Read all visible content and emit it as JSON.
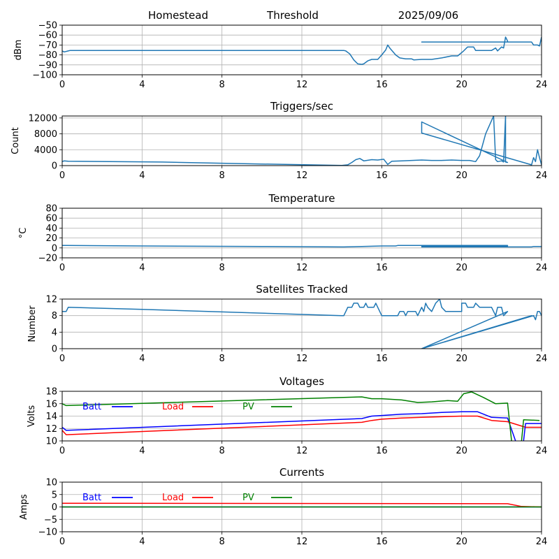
{
  "header": {
    "site": "Homestead",
    "mode": "Threshold",
    "date": "2025/09/06"
  },
  "colors": {
    "line": "#1f77b4",
    "grid": "#b0b0b0",
    "batt": "#0000ff",
    "load": "#ff0000",
    "pv": "#008000"
  },
  "chart_data": [
    {
      "type": "line",
      "title": "",
      "xlabel": "",
      "ylabel": "dBm",
      "grid": true,
      "xlim": [
        0,
        24
      ],
      "xticks": [
        0,
        4,
        8,
        12,
        16,
        20,
        24
      ],
      "ylim": [
        -100,
        -50
      ],
      "yticks": [
        -100,
        -90,
        -80,
        -70,
        -60,
        -50
      ],
      "series": [
        {
          "color_key": "line",
          "points": [
            [
              0,
              -76
            ],
            [
              0.1,
              -77
            ],
            [
              0.3,
              -76
            ],
            [
              0.4,
              -75.5
            ],
            [
              14.1,
              -75.5
            ],
            [
              14.2,
              -76
            ],
            [
              14.4,
              -79
            ],
            [
              14.6,
              -85
            ],
            [
              14.8,
              -89
            ],
            [
              15.0,
              -89.5
            ],
            [
              15.1,
              -89
            ],
            [
              15.3,
              -86
            ],
            [
              15.5,
              -84.5
            ],
            [
              15.8,
              -84.5
            ],
            [
              16.0,
              -80
            ],
            [
              16.2,
              -75
            ],
            [
              16.3,
              -70
            ],
            [
              16.4,
              -73
            ],
            [
              16.7,
              -80
            ],
            [
              16.9,
              -83
            ],
            [
              17.2,
              -84
            ],
            [
              17.5,
              -84
            ],
            [
              17.6,
              -85
            ],
            [
              18.0,
              -84.5
            ],
            [
              18.5,
              -84.5
            ],
            [
              19.0,
              -83
            ],
            [
              19.5,
              -81
            ],
            [
              19.8,
              -81
            ],
            [
              20.1,
              -76
            ],
            [
              20.3,
              -72
            ],
            [
              20.6,
              -72
            ],
            [
              20.7,
              -75.5
            ],
            [
              21.5,
              -75.5
            ],
            [
              21.7,
              -73
            ],
            [
              21.8,
              -76
            ],
            [
              22.0,
              -72
            ],
            [
              22.1,
              -73
            ],
            [
              22.2,
              -62
            ],
            [
              22.3,
              -66
            ],
            [
              22.3,
              -67
            ],
            [
              18.0,
              -67
            ],
            [
              23.5,
              -67
            ],
            [
              23.6,
              -70
            ],
            [
              23.8,
              -70
            ],
            [
              23.9,
              -71
            ],
            [
              24.0,
              -62
            ]
          ]
        }
      ]
    },
    {
      "type": "line",
      "title": "Triggers/sec",
      "xlabel": "",
      "ylabel": "Count",
      "grid": true,
      "xlim": [
        0,
        24
      ],
      "xticks": [
        0,
        4,
        8,
        12,
        16,
        20,
        24
      ],
      "ylim": [
        0,
        12500
      ],
      "yticks": [
        0,
        4000,
        8000,
        12000
      ],
      "series": [
        {
          "color_key": "line",
          "points": [
            [
              0,
              1000
            ],
            [
              0.1,
              1200
            ],
            [
              0.3,
              1100
            ],
            [
              5,
              900
            ],
            [
              10,
              400
            ],
            [
              14,
              50
            ],
            [
              14.3,
              200
            ],
            [
              14.5,
              800
            ],
            [
              14.7,
              1500
            ],
            [
              14.9,
              1800
            ],
            [
              15.1,
              1200
            ],
            [
              15.5,
              1500
            ],
            [
              15.8,
              1400
            ],
            [
              16.1,
              1600
            ],
            [
              16.3,
              300
            ],
            [
              16.5,
              1100
            ],
            [
              17,
              1200
            ],
            [
              17.5,
              1300
            ],
            [
              18,
              1400
            ],
            [
              18.5,
              1300
            ],
            [
              19,
              1300
            ],
            [
              19.5,
              1400
            ],
            [
              20,
              1300
            ],
            [
              20.4,
              1300
            ],
            [
              20.7,
              1000
            ],
            [
              20.9,
              2500
            ],
            [
              21.2,
              8000
            ],
            [
              21.6,
              12500
            ],
            [
              21.7,
              1500
            ],
            [
              21.8,
              1000
            ],
            [
              22.0,
              1200
            ],
            [
              22.1,
              900
            ],
            [
              22.2,
              12500
            ],
            [
              22.2,
              900
            ],
            [
              22.3,
              800
            ],
            [
              18.0,
              11000
            ],
            [
              18.0,
              8200
            ],
            [
              23.5,
              200
            ],
            [
              23.6,
              2000
            ],
            [
              23.7,
              1000
            ],
            [
              23.8,
              4000
            ],
            [
              23.9,
              2000
            ],
            [
              24.0,
              200
            ]
          ]
        }
      ]
    },
    {
      "type": "line",
      "title": "Temperature",
      "xlabel": "",
      "ylabel": "°C",
      "grid": true,
      "xlim": [
        0,
        24
      ],
      "xticks": [
        0,
        4,
        8,
        12,
        16,
        20,
        24
      ],
      "ylim": [
        -20,
        80
      ],
      "yticks": [
        -20,
        0,
        20,
        40,
        60,
        80
      ],
      "series": [
        {
          "color_key": "line",
          "points": [
            [
              0,
              5
            ],
            [
              0.2,
              5
            ],
            [
              4,
              4
            ],
            [
              10,
              3
            ],
            [
              14,
              2
            ],
            [
              14.1,
              2
            ],
            [
              15,
              3
            ],
            [
              16,
              4
            ],
            [
              16.7,
              4
            ],
            [
              16.8,
              5
            ],
            [
              20,
              5
            ],
            [
              21,
              5
            ],
            [
              22.3,
              5
            ],
            [
              22.3,
              4
            ],
            [
              18.0,
              3
            ],
            [
              18.0,
              2
            ],
            [
              23.5,
              2
            ],
            [
              23.6,
              3
            ],
            [
              24,
              3
            ]
          ]
        }
      ]
    },
    {
      "type": "line",
      "title": "Satellites Tracked",
      "xlabel": "",
      "ylabel": "Number",
      "grid": true,
      "xlim": [
        0,
        24
      ],
      "xticks": [
        0,
        4,
        8,
        12,
        16,
        20,
        24
      ],
      "ylim": [
        0,
        12
      ],
      "yticks": [
        0,
        4,
        8,
        12
      ],
      "series": [
        {
          "color_key": "line",
          "points": [
            [
              0,
              9
            ],
            [
              0.2,
              9
            ],
            [
              0.3,
              10
            ],
            [
              4,
              9.5
            ],
            [
              14,
              8
            ],
            [
              14.1,
              8
            ],
            [
              14.2,
              9
            ],
            [
              14.3,
              10
            ],
            [
              14.5,
              10
            ],
            [
              14.6,
              11
            ],
            [
              14.8,
              11
            ],
            [
              14.9,
              10
            ],
            [
              15.1,
              10
            ],
            [
              15.2,
              11
            ],
            [
              15.3,
              10
            ],
            [
              15.6,
              10
            ],
            [
              15.7,
              11
            ],
            [
              15.8,
              10
            ],
            [
              15.9,
              9
            ],
            [
              16,
              8
            ],
            [
              16.2,
              8
            ],
            [
              16.8,
              8
            ],
            [
              16.9,
              9
            ],
            [
              17.1,
              9
            ],
            [
              17.2,
              8
            ],
            [
              17.3,
              9
            ],
            [
              17.7,
              9
            ],
            [
              17.8,
              8
            ],
            [
              17.9,
              9
            ],
            [
              18,
              10
            ],
            [
              18.1,
              9
            ],
            [
              18.2,
              11
            ],
            [
              18.3,
              10
            ],
            [
              18.5,
              9
            ],
            [
              18.7,
              11
            ],
            [
              18.9,
              12
            ],
            [
              19,
              10
            ],
            [
              19.2,
              9
            ],
            [
              20,
              9
            ],
            [
              20,
              11
            ],
            [
              20.2,
              11
            ],
            [
              20.3,
              10
            ],
            [
              20.6,
              10
            ],
            [
              20.7,
              11
            ],
            [
              20.9,
              10
            ],
            [
              21.5,
              10
            ],
            [
              21.7,
              8
            ],
            [
              21.8,
              10
            ],
            [
              22.0,
              10
            ],
            [
              22.1,
              8
            ],
            [
              22.3,
              9
            ],
            [
              18,
              0
            ],
            [
              23.5,
              8
            ],
            [
              18,
              0
            ],
            [
              23.6,
              8
            ],
            [
              23.7,
              7
            ],
            [
              23.8,
              9
            ],
            [
              23.9,
              9
            ],
            [
              24,
              8
            ]
          ]
        }
      ]
    },
    {
      "type": "line",
      "title": "Voltages",
      "xlabel": "",
      "ylabel": "Volts",
      "grid": true,
      "xlim": [
        0,
        24
      ],
      "xticks": [
        0,
        4,
        8,
        12,
        16,
        20,
        24
      ],
      "ylim": [
        10,
        18
      ],
      "yticks": [
        10,
        12,
        14,
        16,
        18
      ],
      "legend": [
        {
          "name": "Batt",
          "color_key": "batt"
        },
        {
          "name": "Load",
          "color_key": "load"
        },
        {
          "name": "PV",
          "color_key": "pv"
        }
      ],
      "series": [
        {
          "name": "Batt",
          "color_key": "batt",
          "points": [
            [
              0,
              12.2
            ],
            [
              0.2,
              11.7
            ],
            [
              15,
              13.6
            ],
            [
              15.5,
              14
            ],
            [
              16,
              14.1
            ],
            [
              17,
              14.3
            ],
            [
              18,
              14.4
            ],
            [
              19,
              14.6
            ],
            [
              20,
              14.7
            ],
            [
              20.8,
              14.7
            ],
            [
              21.5,
              13.8
            ],
            [
              22.3,
              13.7
            ],
            [
              22.7,
              10
            ]
          ]
        },
        {
          "name": "Load",
          "color_key": "load",
          "points": [
            [
              0,
              11.7
            ],
            [
              0.2,
              11
            ],
            [
              15,
              13
            ],
            [
              15.5,
              13.3
            ],
            [
              16,
              13.5
            ],
            [
              17,
              13.7
            ],
            [
              18,
              13.8
            ],
            [
              19,
              13.9
            ],
            [
              20,
              14
            ],
            [
              20.8,
              14
            ],
            [
              21.5,
              13.3
            ],
            [
              22.3,
              13.1
            ],
            [
              23.2,
              12.2
            ],
            [
              24,
              12.2
            ]
          ]
        },
        {
          "name": "PV",
          "color_key": "pv",
          "points": [
            [
              0,
              16
            ],
            [
              0.2,
              15.7
            ],
            [
              15,
              17.1
            ],
            [
              15.5,
              16.8
            ],
            [
              16,
              16.8
            ],
            [
              17,
              16.6
            ],
            [
              17.8,
              16.2
            ],
            [
              18.5,
              16.3
            ],
            [
              19.3,
              16.5
            ],
            [
              19.8,
              16.4
            ],
            [
              20.1,
              17.6
            ],
            [
              20.5,
              17.9
            ],
            [
              21.1,
              17
            ],
            [
              21.7,
              16
            ],
            [
              22.3,
              16.1
            ],
            [
              22.5,
              10
            ]
          ]
        },
        {
          "name": "Batt",
          "color_key": "batt",
          "points": [
            [
              23.1,
              10
            ],
            [
              23.2,
              12.8
            ],
            [
              24,
              12.8
            ]
          ]
        },
        {
          "name": "PV",
          "color_key": "pv",
          "points": [
            [
              23,
              10
            ],
            [
              23.1,
              13.4
            ],
            [
              23.9,
              13.3
            ]
          ]
        }
      ]
    },
    {
      "type": "line",
      "title": "Currents",
      "xlabel": "",
      "ylabel": "Amps",
      "grid": true,
      "xlim": [
        0,
        24
      ],
      "xticks": [
        0,
        4,
        8,
        12,
        16,
        20,
        24
      ],
      "ylim": [
        -10,
        10
      ],
      "yticks": [
        -10,
        -5,
        0,
        5,
        10
      ],
      "legend": [
        {
          "name": "Batt",
          "color_key": "batt"
        },
        {
          "name": "Load",
          "color_key": "load"
        },
        {
          "name": "PV",
          "color_key": "pv"
        }
      ],
      "series": [
        {
          "name": "Batt",
          "color_key": "batt",
          "points": [
            [
              0,
              0
            ],
            [
              24,
              0
            ]
          ]
        },
        {
          "name": "Load",
          "color_key": "load",
          "points": [
            [
              0,
              1.5
            ],
            [
              22.3,
              1.3
            ],
            [
              23,
              0.2
            ],
            [
              24,
              0
            ]
          ]
        },
        {
          "name": "PV",
          "color_key": "pv",
          "points": [
            [
              0,
              0
            ],
            [
              24,
              0
            ]
          ]
        }
      ]
    }
  ]
}
